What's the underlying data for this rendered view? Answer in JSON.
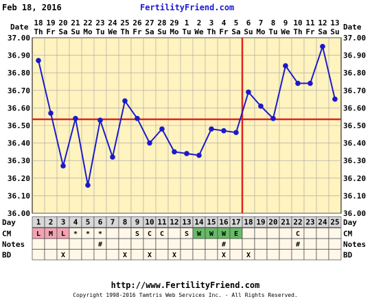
{
  "header": {
    "date": "Feb 18, 2016",
    "site": "FertilityFriend.com"
  },
  "footer": {
    "url": "http://www.FertilityFriend.com",
    "copyright": "Copyright 1998-2016 Tamtris Web Services Inc. - All Rights Reserved."
  },
  "row_labels": {
    "date": "Date",
    "day": "Day",
    "cm": "CM",
    "notes": "Notes",
    "bd": "BD"
  },
  "colors": {
    "background": "#fff3bf",
    "grid": "#a0a0a0",
    "series": "#1a1acc",
    "coverline": "#dd2222",
    "ovulation": "#dd2222",
    "header_link": "#1a1acc",
    "menstruation": "#f3a3b3",
    "egg_white": "#66bb66",
    "day_cell": "#d8d8d8",
    "row_cell": "#fff7e8"
  },
  "chart_data": {
    "type": "line",
    "title": "",
    "ylabel": "",
    "xlabel": "",
    "ylim": [
      36.0,
      37.0
    ],
    "y_ticks": [
      "36.00",
      "36.10",
      "36.20",
      "36.30",
      "36.40",
      "36.50",
      "36.60",
      "36.70",
      "36.80",
      "36.90",
      "37.00"
    ],
    "dates": [
      "18",
      "19",
      "20",
      "21",
      "22",
      "23",
      "24",
      "25",
      "26",
      "27",
      "28",
      "29",
      "1",
      "2",
      "3",
      "4",
      "5",
      "6",
      "7",
      "8",
      "9",
      "10",
      "11",
      "12",
      "13"
    ],
    "weekdays": [
      "Th",
      "Fr",
      "Sa",
      "Su",
      "Mo",
      "Tu",
      "We",
      "Th",
      "Fr",
      "Sa",
      "Su",
      "Mo",
      "Tu",
      "We",
      "Th",
      "Fr",
      "Sa",
      "Su",
      "Mo",
      "Tu",
      "We",
      "Th",
      "Fr",
      "Sa",
      "Su"
    ],
    "cycle_days": [
      "1",
      "2",
      "3",
      "4",
      "5",
      "6",
      "7",
      "8",
      "9",
      "10",
      "11",
      "12",
      "13",
      "14",
      "15",
      "16",
      "17",
      "18",
      "19",
      "20",
      "21",
      "22",
      "23",
      "24",
      "25"
    ],
    "temperatures": [
      36.87,
      36.57,
      36.27,
      36.54,
      36.16,
      36.53,
      36.32,
      36.64,
      36.54,
      36.4,
      36.48,
      36.35,
      36.34,
      36.33,
      36.48,
      36.47,
      36.46,
      36.69,
      36.61,
      36.54,
      36.84,
      36.74,
      36.74,
      36.95,
      36.65
    ],
    "coverline": 36.535,
    "ovulation_day": 17,
    "cm": [
      "L",
      "M",
      "L",
      "*",
      "*",
      "*",
      "",
      "",
      "S",
      "C",
      "C",
      "",
      "S",
      "W",
      "W",
      "W",
      "E",
      "",
      "",
      "",
      "",
      "C",
      "",
      "",
      ""
    ],
    "notes": [
      "",
      "",
      "",
      "",
      "",
      "#",
      "",
      "",
      "",
      "",
      "",
      "",
      "",
      "",
      "",
      "#",
      "",
      "",
      "",
      "",
      "",
      "#",
      "",
      "",
      ""
    ],
    "bd": [
      "",
      "",
      "X",
      "",
      "",
      "",
      "",
      "X",
      "",
      "X",
      "",
      "X",
      "",
      "",
      "",
      "X",
      "",
      "X",
      "",
      "",
      "",
      "",
      "",
      "",
      ""
    ]
  }
}
